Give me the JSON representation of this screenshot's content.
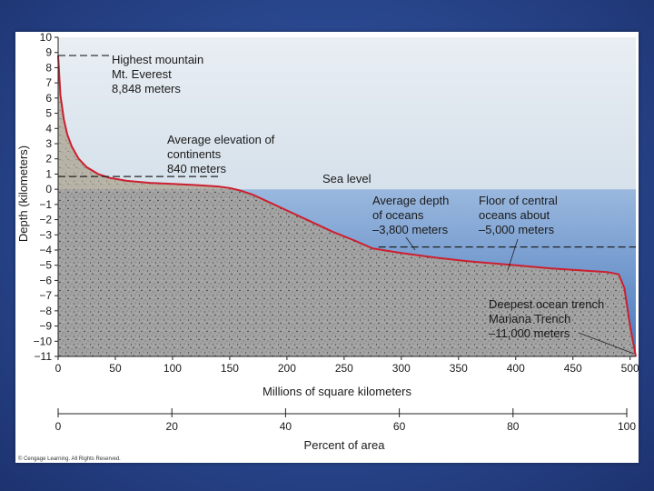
{
  "chart_data": {
    "type": "area",
    "xlabel": "Millions of square kilometers",
    "ylabel": "Depth (kilometers)",
    "xlim": [
      0,
      505
    ],
    "ylim": [
      -11,
      10
    ],
    "x_ticks": [
      "0",
      "50",
      "100",
      "150",
      "200",
      "250",
      "300",
      "350",
      "400",
      "450",
      "500"
    ],
    "y_ticks": [
      "10",
      "9",
      "8",
      "7",
      "6",
      "5",
      "4",
      "3",
      "2",
      "1",
      "0",
      "−1",
      "−2",
      "−3",
      "−4",
      "−5",
      "−6",
      "−7",
      "−8",
      "−9",
      "−10",
      "−11"
    ],
    "secondary_axis": {
      "label": "Percent of area",
      "ticks": [
        "0",
        "20",
        "40",
        "60",
        "80",
        "100"
      ]
    },
    "series": [
      {
        "x": [
          0,
          2,
          5,
          8,
          12,
          18,
          25,
          35,
          45,
          60,
          80,
          100,
          120,
          140,
          150,
          160,
          170,
          180,
          200,
          220,
          240,
          260,
          275,
          300,
          330,
          360,
          400,
          430,
          460,
          480,
          490,
          495,
          500,
          505
        ],
        "y": [
          8.8,
          6.2,
          4.6,
          3.6,
          2.8,
          2.0,
          1.45,
          1.0,
          0.75,
          0.55,
          0.42,
          0.35,
          0.28,
          0.18,
          0.08,
          -0.1,
          -0.35,
          -0.7,
          -1.4,
          -2.1,
          -2.8,
          -3.4,
          -3.9,
          -4.2,
          -4.5,
          -4.75,
          -5.0,
          -5.2,
          -5.35,
          -5.45,
          -5.6,
          -6.5,
          -9.0,
          -11.0
        ]
      }
    ],
    "annotations": {
      "everest": [
        "Highest mountain",
        "Mt. Everest",
        "8,848 meters"
      ],
      "continents": [
        "Average elevation of",
        "continents",
        "840 meters"
      ],
      "sea_level": "Sea level",
      "ocean_depth": [
        "Average depth",
        "of oceans",
        "–3,800 meters"
      ],
      "ocean_floor": [
        "Floor of central",
        "oceans about",
        "–5,000 meters"
      ],
      "trench": [
        "Deepest ocean trench",
        "Mariana Trench",
        "–11,000 meters"
      ]
    },
    "copyright": "© Cengage Learning. All Rights Reserved.",
    "colors": {
      "curve": "#cc1f2e",
      "land": "#9c9c9c",
      "ocean_top": "#8fb0d8",
      "ocean_bottom": "#4d7cc0",
      "sky": "#dde6ee"
    }
  }
}
